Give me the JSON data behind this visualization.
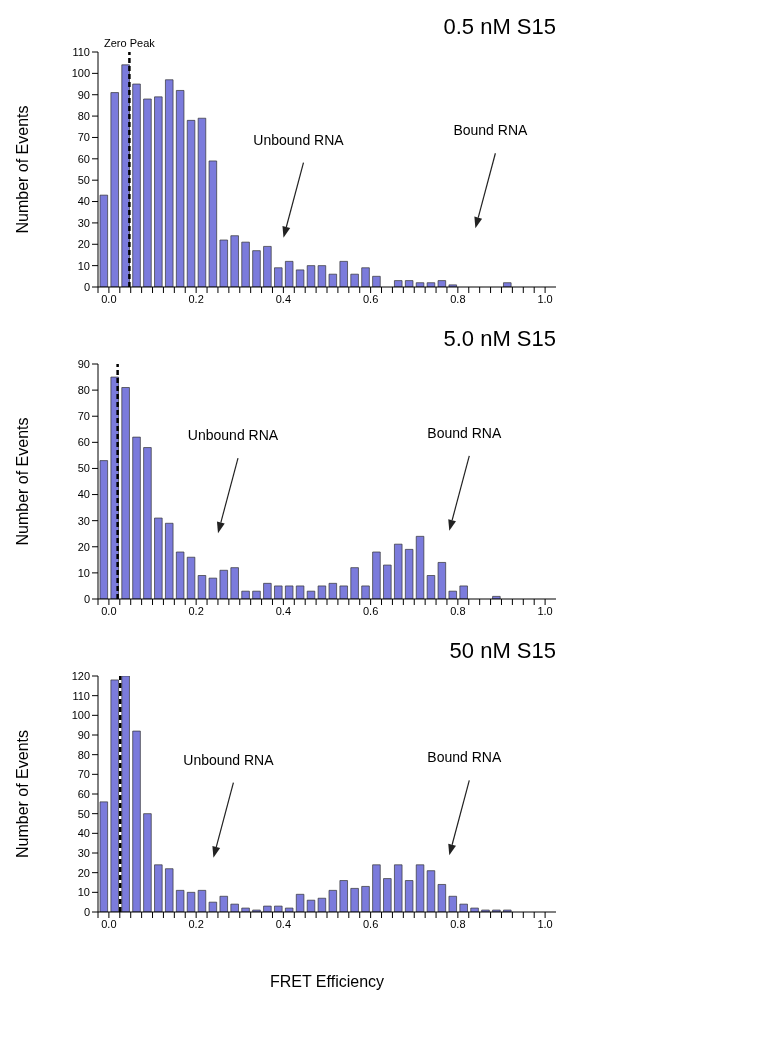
{
  "chart_data": [
    {
      "type": "histogram",
      "title": "0.5 nM S15",
      "ylabel": "Number of Events",
      "color": "#7b7bdc",
      "bins": [
        -0.025,
        0,
        0.025,
        0.05,
        0.075,
        0.1,
        0.125,
        0.15,
        0.175,
        0.2,
        0.225,
        0.25,
        0.275,
        0.3,
        0.325,
        0.35,
        0.375,
        0.4,
        0.425,
        0.45,
        0.475,
        0.5,
        0.525,
        0.55,
        0.575,
        0.6,
        0.625,
        0.65,
        0.675,
        0.7,
        0.725,
        0.75,
        0.775,
        0.8,
        0.825,
        0.85,
        0.875,
        0.9,
        0.925,
        0.95,
        0.975,
        1.0,
        1.025
      ],
      "values": [
        43,
        91,
        104,
        95,
        88,
        89,
        97,
        92,
        78,
        79,
        59,
        22,
        24,
        21,
        17,
        19,
        9,
        12,
        8,
        10,
        10,
        6,
        12,
        6,
        9,
        5,
        0,
        3,
        3,
        2,
        2,
        3,
        1,
        0,
        0,
        0,
        0,
        2,
        0,
        0,
        0,
        0
      ],
      "xlim": [
        -0.025,
        1.025
      ],
      "xticks": [
        {
          "value": -0.025,
          "label": null
        },
        {
          "value": 0,
          "label": "0.0"
        },
        {
          "value": 0.025,
          "label": null
        },
        {
          "value": 0.05,
          "label": null
        },
        {
          "value": 0.075,
          "label": null
        },
        {
          "value": 0.1,
          "label": null
        },
        {
          "value": 0.125,
          "label": null
        },
        {
          "value": 0.15,
          "label": null
        },
        {
          "value": 0.175,
          "label": null
        },
        {
          "value": 0.2,
          "label": "0.2"
        },
        {
          "value": 0.225,
          "label": null
        },
        {
          "value": 0.25,
          "label": null
        },
        {
          "value": 0.275,
          "label": null
        },
        {
          "value": 0.3,
          "label": null
        },
        {
          "value": 0.325,
          "label": null
        },
        {
          "value": 0.35,
          "label": null
        },
        {
          "value": 0.375,
          "label": null
        },
        {
          "value": 0.4,
          "label": "0.4"
        },
        {
          "value": 0.425,
          "label": null
        },
        {
          "value": 0.45,
          "label": null
        },
        {
          "value": 0.475,
          "label": null
        },
        {
          "value": 0.5,
          "label": null
        },
        {
          "value": 0.525,
          "label": null
        },
        {
          "value": 0.55,
          "label": null
        },
        {
          "value": 0.575,
          "label": null
        },
        {
          "value": 0.6,
          "label": "0.6"
        },
        {
          "value": 0.625,
          "label": null
        },
        {
          "value": 0.65,
          "label": null
        },
        {
          "value": 0.675,
          "label": null
        },
        {
          "value": 0.7,
          "label": null
        },
        {
          "value": 0.725,
          "label": null
        },
        {
          "value": 0.75,
          "label": null
        },
        {
          "value": 0.775,
          "label": null
        },
        {
          "value": 0.8,
          "label": "0.8"
        },
        {
          "value": 0.825,
          "label": null
        },
        {
          "value": 0.85,
          "label": null
        },
        {
          "value": 0.875,
          "label": null
        },
        {
          "value": 0.9,
          "label": null
        },
        {
          "value": 0.925,
          "label": null
        },
        {
          "value": 0.95,
          "label": null
        },
        {
          "value": 0.975,
          "label": null
        },
        {
          "value": 1.0,
          "label": "1.0"
        }
      ],
      "ylim": [
        0,
        110
      ],
      "yticks": [
        0,
        10,
        20,
        30,
        40,
        50,
        60,
        70,
        80,
        90,
        100,
        110
      ],
      "ref_lines": [
        {
          "axis": "x",
          "value": 0.047,
          "label": "Zero Peak",
          "color": "#000000",
          "line_style": "dashed"
        }
      ],
      "annotations": [
        "Unbound RNA",
        "Bound RNA"
      ]
    },
    {
      "type": "histogram",
      "title": "5.0 nM S15",
      "ylabel": "Number of Events",
      "color": "#7b7bdc",
      "bins": [
        -0.025,
        0,
        0.025,
        0.05,
        0.075,
        0.1,
        0.125,
        0.15,
        0.175,
        0.2,
        0.225,
        0.25,
        0.275,
        0.3,
        0.325,
        0.35,
        0.375,
        0.4,
        0.425,
        0.45,
        0.475,
        0.5,
        0.525,
        0.55,
        0.575,
        0.6,
        0.625,
        0.65,
        0.675,
        0.7,
        0.725,
        0.75,
        0.775,
        0.8,
        0.825,
        0.85,
        0.875,
        0.9,
        0.925,
        0.95,
        0.975,
        1.0,
        1.025
      ],
      "values": [
        53,
        85,
        81,
        62,
        58,
        31,
        29,
        18,
        16,
        9,
        8,
        11,
        12,
        3,
        3,
        6,
        5,
        5,
        5,
        3,
        5,
        6,
        5,
        12,
        5,
        18,
        13,
        21,
        19,
        24,
        9,
        14,
        3,
        5,
        0,
        0,
        1,
        0,
        0,
        0,
        0,
        0
      ],
      "xlim": [
        -0.025,
        1.025
      ],
      "xticks": [
        {
          "value": -0.025,
          "label": null
        },
        {
          "value": 0,
          "label": "0.0"
        },
        {
          "value": 0.025,
          "label": null
        },
        {
          "value": 0.05,
          "label": null
        },
        {
          "value": 0.075,
          "label": null
        },
        {
          "value": 0.1,
          "label": null
        },
        {
          "value": 0.125,
          "label": null
        },
        {
          "value": 0.15,
          "label": null
        },
        {
          "value": 0.175,
          "label": null
        },
        {
          "value": 0.2,
          "label": "0.2"
        },
        {
          "value": 0.225,
          "label": null
        },
        {
          "value": 0.25,
          "label": null
        },
        {
          "value": 0.275,
          "label": null
        },
        {
          "value": 0.3,
          "label": null
        },
        {
          "value": 0.325,
          "label": null
        },
        {
          "value": 0.35,
          "label": null
        },
        {
          "value": 0.375,
          "label": null
        },
        {
          "value": 0.4,
          "label": "0.4"
        },
        {
          "value": 0.425,
          "label": null
        },
        {
          "value": 0.45,
          "label": null
        },
        {
          "value": 0.475,
          "label": null
        },
        {
          "value": 0.5,
          "label": null
        },
        {
          "value": 0.525,
          "label": null
        },
        {
          "value": 0.55,
          "label": null
        },
        {
          "value": 0.575,
          "label": null
        },
        {
          "value": 0.6,
          "label": "0.6"
        },
        {
          "value": 0.625,
          "label": null
        },
        {
          "value": 0.65,
          "label": null
        },
        {
          "value": 0.675,
          "label": null
        },
        {
          "value": 0.7,
          "label": null
        },
        {
          "value": 0.725,
          "label": null
        },
        {
          "value": 0.75,
          "label": null
        },
        {
          "value": 0.775,
          "label": null
        },
        {
          "value": 0.8,
          "label": "0.8"
        },
        {
          "value": 0.825,
          "label": null
        },
        {
          "value": 0.85,
          "label": null
        },
        {
          "value": 0.875,
          "label": null
        },
        {
          "value": 0.9,
          "label": null
        },
        {
          "value": 0.925,
          "label": null
        },
        {
          "value": 0.95,
          "label": null
        },
        {
          "value": 0.975,
          "label": null
        },
        {
          "value": 1.0,
          "label": "1.0"
        }
      ],
      "ylim": [
        0,
        90
      ],
      "yticks": [
        0,
        10,
        20,
        30,
        40,
        50,
        60,
        70,
        80,
        90
      ],
      "ref_lines": [
        {
          "axis": "x",
          "value": 0.02,
          "color": "#000000",
          "line_style": "dashed"
        }
      ],
      "annotations": [
        "Unbound RNA",
        "Bound RNA"
      ]
    },
    {
      "type": "histogram",
      "title": "50 nM S15",
      "ylabel": "Number of Events",
      "xlabel": "FRET Efficiency",
      "color": "#7b7bdc",
      "bins": [
        -0.025,
        0,
        0.025,
        0.05,
        0.075,
        0.1,
        0.125,
        0.15,
        0.175,
        0.2,
        0.225,
        0.25,
        0.275,
        0.3,
        0.325,
        0.35,
        0.375,
        0.4,
        0.425,
        0.45,
        0.475,
        0.5,
        0.525,
        0.55,
        0.575,
        0.6,
        0.625,
        0.65,
        0.675,
        0.7,
        0.725,
        0.75,
        0.775,
        0.8,
        0.825,
        0.85,
        0.875,
        0.9,
        0.925,
        0.95,
        0.975,
        1.0,
        1.025
      ],
      "values": [
        56,
        118,
        120,
        92,
        50,
        24,
        22,
        11,
        10,
        11,
        5,
        8,
        4,
        2,
        1,
        3,
        3,
        2,
        9,
        6,
        7,
        11,
        16,
        12,
        13,
        24,
        17,
        24,
        16,
        24,
        21,
        14,
        8,
        4,
        2,
        1,
        1,
        1,
        0,
        0,
        0,
        0
      ],
      "xlim": [
        -0.025,
        1.025
      ],
      "xticks": [
        {
          "value": -0.025,
          "label": null
        },
        {
          "value": 0,
          "label": "0.0"
        },
        {
          "value": 0.025,
          "label": null
        },
        {
          "value": 0.05,
          "label": null
        },
        {
          "value": 0.075,
          "label": null
        },
        {
          "value": 0.1,
          "label": null
        },
        {
          "value": 0.125,
          "label": null
        },
        {
          "value": 0.15,
          "label": null
        },
        {
          "value": 0.175,
          "label": null
        },
        {
          "value": 0.2,
          "label": "0.2"
        },
        {
          "value": 0.225,
          "label": null
        },
        {
          "value": 0.25,
          "label": null
        },
        {
          "value": 0.275,
          "label": null
        },
        {
          "value": 0.3,
          "label": null
        },
        {
          "value": 0.325,
          "label": null
        },
        {
          "value": 0.35,
          "label": null
        },
        {
          "value": 0.375,
          "label": null
        },
        {
          "value": 0.4,
          "label": "0.4"
        },
        {
          "value": 0.425,
          "label": null
        },
        {
          "value": 0.45,
          "label": null
        },
        {
          "value": 0.475,
          "label": null
        },
        {
          "value": 0.5,
          "label": null
        },
        {
          "value": 0.525,
          "label": null
        },
        {
          "value": 0.55,
          "label": null
        },
        {
          "value": 0.575,
          "label": null
        },
        {
          "value": 0.6,
          "label": "0.6"
        },
        {
          "value": 0.625,
          "label": null
        },
        {
          "value": 0.65,
          "label": null
        },
        {
          "value": 0.675,
          "label": null
        },
        {
          "value": 0.7,
          "label": null
        },
        {
          "value": 0.725,
          "label": null
        },
        {
          "value": 0.75,
          "label": null
        },
        {
          "value": 0.775,
          "label": null
        },
        {
          "value": 0.8,
          "label": "0.8"
        },
        {
          "value": 0.825,
          "label": null
        },
        {
          "value": 0.85,
          "label": null
        },
        {
          "value": 0.875,
          "label": null
        },
        {
          "value": 0.9,
          "label": null
        },
        {
          "value": 0.925,
          "label": null
        },
        {
          "value": 0.95,
          "label": null
        },
        {
          "value": 0.975,
          "label": null
        },
        {
          "value": 1.0,
          "label": "1.0"
        }
      ],
      "ylim": [
        0,
        120
      ],
      "yticks": [
        0,
        10,
        20,
        30,
        40,
        50,
        60,
        70,
        80,
        90,
        100,
        110,
        120
      ],
      "ref_lines": [
        {
          "axis": "x",
          "value": 0.026,
          "color": "#000000",
          "line_style": "dashed"
        }
      ],
      "annotations": [
        "Unbound RNA",
        "Bound RNA"
      ]
    }
  ]
}
